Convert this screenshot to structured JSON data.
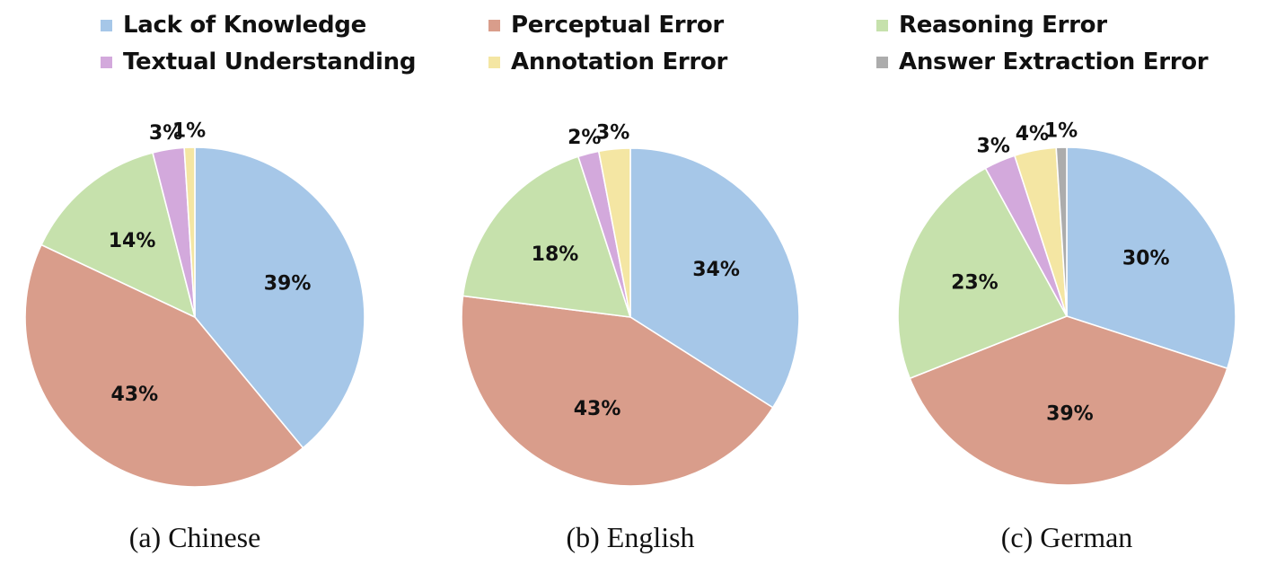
{
  "legend": {
    "items": [
      {
        "label": "Lack of Knowledge",
        "color": "#a6c7e8"
      },
      {
        "label": "Perceptual Error",
        "color": "#d99d8b"
      },
      {
        "label": "Reasoning Error",
        "color": "#c6e1ac"
      },
      {
        "label": "Textual Understanding",
        "color": "#d3a9dc"
      },
      {
        "label": "Annotation Error",
        "color": "#f4e6a3"
      },
      {
        "label": "Answer Extraction Error",
        "color": "#acacac"
      }
    ]
  },
  "chart_data": [
    {
      "type": "pie",
      "caption": "(a) Chinese",
      "categories": [
        "Lack of Knowledge",
        "Perceptual Error",
        "Reasoning Error",
        "Textual Understanding",
        "Annotation Error",
        "Answer Extraction Error"
      ],
      "values": [
        39,
        43,
        14,
        3,
        1,
        0
      ],
      "labels": [
        "39%",
        "43%",
        "14%",
        "3%",
        "1%",
        ""
      ]
    },
    {
      "type": "pie",
      "caption": "(b) English",
      "categories": [
        "Lack of Knowledge",
        "Perceptual Error",
        "Reasoning Error",
        "Textual Understanding",
        "Annotation Error",
        "Answer Extraction Error"
      ],
      "values": [
        34,
        43,
        18,
        2,
        3,
        0
      ],
      "labels": [
        "34%",
        "43%",
        "18%",
        "2%",
        "3%",
        ""
      ]
    },
    {
      "type": "pie",
      "caption": "(c) German",
      "categories": [
        "Lack of Knowledge",
        "Perceptual Error",
        "Reasoning Error",
        "Textual Understanding",
        "Annotation Error",
        "Answer Extraction Error"
      ],
      "values": [
        30,
        39,
        23,
        3,
        4,
        1
      ],
      "labels": [
        "30%",
        "39%",
        "23%",
        "3%",
        "4%",
        "1%"
      ]
    }
  ]
}
